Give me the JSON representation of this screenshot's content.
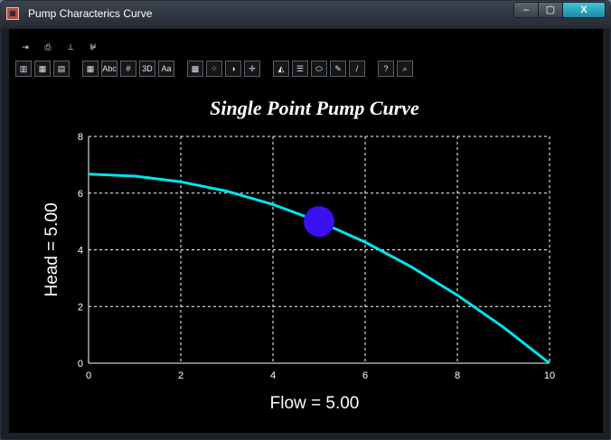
{
  "window": {
    "title": "Pump Characterics Curve",
    "controls": {
      "minimize": "–",
      "maximize": "▢",
      "close": "X"
    }
  },
  "toolbar": {
    "row1": [
      {
        "name": "exit-icon",
        "glyph": "⇥"
      },
      {
        "name": "print-icon",
        "glyph": "⎙"
      },
      {
        "name": "axis-scale-icon",
        "glyph": "⊥"
      },
      {
        "name": "axis-log-icon",
        "glyph": "⊯"
      }
    ],
    "row2_groups": [
      [
        {
          "name": "bar-chart-icon",
          "glyph": "▥"
        },
        {
          "name": "3d-bar-icon",
          "glyph": "▦"
        },
        {
          "name": "color-bars-icon",
          "glyph": "▤"
        }
      ],
      [
        {
          "name": "data-grid-icon",
          "glyph": "▦"
        },
        {
          "name": "text-abc-icon",
          "glyph": "Abc"
        },
        {
          "name": "grid-lines-icon",
          "glyph": "#"
        },
        {
          "name": "3d-view-icon",
          "glyph": "3D"
        },
        {
          "name": "font-icon",
          "glyph": "Aa"
        }
      ],
      [
        {
          "name": "pattern-icon",
          "glyph": "▩"
        },
        {
          "name": "scatter-icon",
          "glyph": "⁘"
        },
        {
          "name": "palette-icon",
          "glyph": "◑"
        },
        {
          "name": "crosshair-icon",
          "glyph": "✛"
        }
      ],
      [
        {
          "name": "area-chart-icon",
          "glyph": "◭"
        },
        {
          "name": "legend-icon",
          "glyph": "☰"
        },
        {
          "name": "label-icon",
          "glyph": "⬭"
        },
        {
          "name": "tools-icon",
          "glyph": "✎"
        },
        {
          "name": "pencil-icon",
          "glyph": "/"
        }
      ],
      [
        {
          "name": "help-icon",
          "glyph": "?"
        },
        {
          "name": "zoom-icon",
          "glyph": "⌕"
        }
      ]
    ]
  },
  "colors": {
    "curve": "#00e5ee",
    "point": "#3a10f0",
    "grid": "#ffffff",
    "background": "#000000"
  },
  "chart_data": {
    "type": "line",
    "title": "Single Point Pump Curve",
    "xlabel": "Flow = 5.00",
    "ylabel": "Head = 5.00",
    "xlim": [
      0,
      10
    ],
    "ylim": [
      0,
      8
    ],
    "x_ticks": [
      "0",
      "2",
      "4",
      "6",
      "8",
      "10"
    ],
    "y_ticks": [
      "0",
      "2",
      "4",
      "6",
      "8"
    ],
    "grid": true,
    "series": [
      {
        "x": [
          0,
          1,
          2,
          3,
          4,
          5,
          6,
          7,
          8,
          9,
          10
        ],
        "y": [
          6.67,
          6.6,
          6.4,
          6.07,
          5.6,
          5.0,
          4.27,
          3.4,
          2.4,
          1.27,
          0.0
        ]
      }
    ],
    "point": {
      "x": 5.0,
      "y": 5.0
    }
  }
}
